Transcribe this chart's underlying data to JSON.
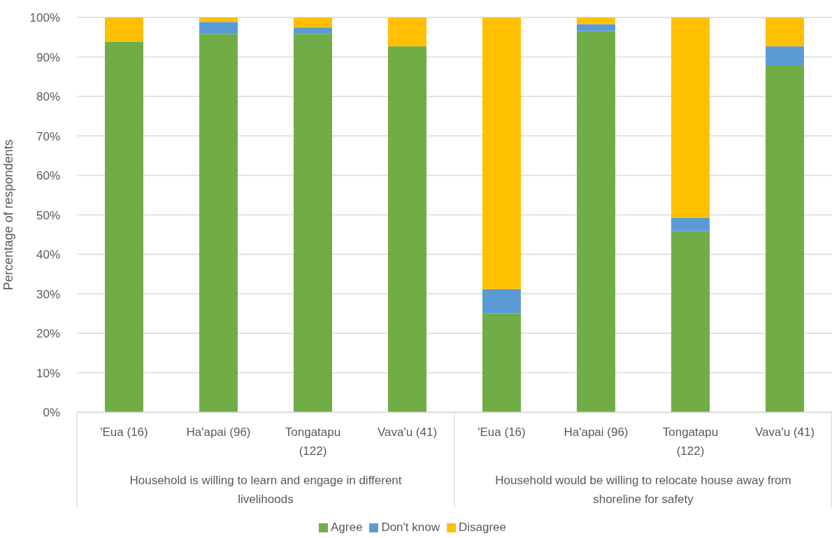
{
  "chart_data": {
    "type": "bar",
    "ylabel": "Percentage of respondents",
    "categories": [
      "'Eua (16)",
      "Ha'apai (96)",
      "Tongatapu (122)",
      "Vava'u (41)",
      "'Eua (16)",
      "Ha'apai (96)",
      "Tongatapu (122)",
      "Vava'u (41)"
    ],
    "series": [
      {
        "name": "Agree",
        "color": "#70ad47",
        "values": [
          93.8,
          95.8,
          95.9,
          92.7,
          25.0,
          96.5,
          45.9,
          87.8
        ]
      },
      {
        "name": "Don't know",
        "color": "#5b9bd5",
        "values": [
          0,
          3.1,
          1.6,
          0,
          6.2,
          1.8,
          3.3,
          4.9
        ]
      },
      {
        "name": "Disagree",
        "color": "#ffc000",
        "values": [
          6.2,
          1.1,
          2.5,
          7.3,
          68.8,
          1.7,
          50.8,
          7.3
        ]
      }
    ],
    "stacked": true,
    "ylim": [
      0,
      100
    ],
    "yticks": [
      {
        "value": 0,
        "label": "0%"
      },
      {
        "value": 10,
        "label": "10%"
      },
      {
        "value": 20,
        "label": "20%"
      },
      {
        "value": 30,
        "label": "30%"
      },
      {
        "value": 40,
        "label": "40%"
      },
      {
        "value": 50,
        "label": "50%"
      },
      {
        "value": 60,
        "label": "60%"
      },
      {
        "value": 70,
        "label": "70%"
      },
      {
        "value": 80,
        "label": "80%"
      },
      {
        "value": 90,
        "label": "90%"
      },
      {
        "value": 100,
        "label": "100%"
      }
    ],
    "grid": "y",
    "legend": "bottom",
    "annotations": [
      "Household is willing to learn and engage in different livelihoods",
      "Household would be willing to relocate house away from shoreline for safety"
    ]
  }
}
